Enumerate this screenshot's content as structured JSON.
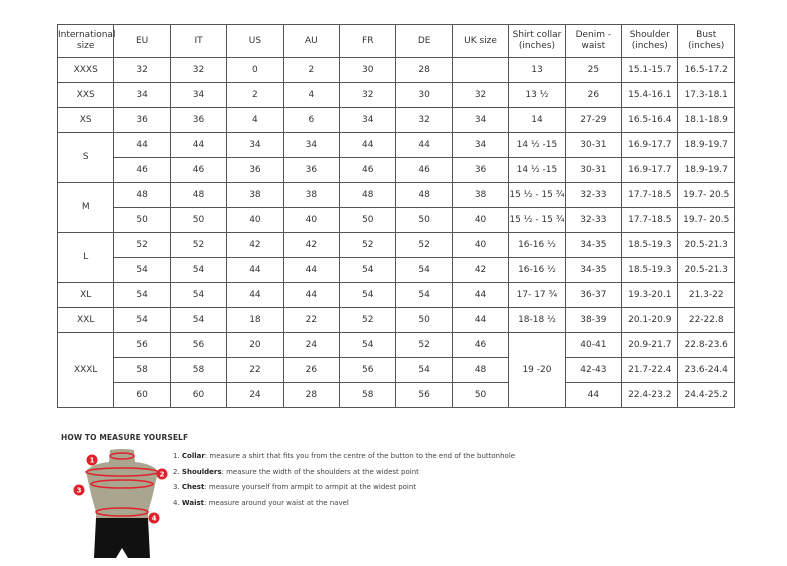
{
  "table": {
    "headers": [
      "International size",
      "EU",
      "IT",
      "US",
      "AU",
      "FR",
      "DE",
      "UK size",
      "Shirt collar (inches)",
      "Denim - waist",
      "Shoulder (inches)",
      "Bust (inches)"
    ],
    "rows": [
      [
        {
          "text": "XXXS"
        },
        "32",
        "32",
        "0",
        "2",
        "30",
        "28",
        "",
        "13",
        "25",
        "15.1-15.7",
        "16.5-17.2"
      ],
      [
        {
          "text": "XXS"
        },
        "34",
        "34",
        "2",
        "4",
        "32",
        "30",
        "32",
        "13 ½",
        "26",
        "15.4-16.1",
        "17.3-18.1"
      ],
      [
        {
          "text": "XS"
        },
        "36",
        "36",
        "4",
        "6",
        "34",
        "32",
        "34",
        "14",
        "27-29",
        "16.5-16.4",
        "18.1-18.9"
      ],
      [
        {
          "text": "S",
          "rowspan": 2
        },
        "44",
        "44",
        "34",
        "34",
        "44",
        "44",
        "34",
        "14 ½ -15",
        "30-31",
        "16.9-17.7",
        "18.9-19.7"
      ],
      [
        "46",
        "46",
        "36",
        "36",
        "46",
        "46",
        "36",
        "14 ½ -15",
        "30-31",
        "16.9-17.7",
        "18.9-19.7"
      ],
      [
        {
          "text": "M",
          "rowspan": 2
        },
        "48",
        "48",
        "38",
        "38",
        "48",
        "48",
        "38",
        "15 ½ - 15 ¾",
        "32-33",
        "17.7-18.5",
        "19.7- 20.5"
      ],
      [
        "50",
        "50",
        "40",
        "40",
        "50",
        "50",
        "40",
        "15 ½ - 15 ¾",
        "32-33",
        "17.7-18.5",
        "19.7- 20.5"
      ],
      [
        {
          "text": "L",
          "rowspan": 2
        },
        "52",
        "52",
        "42",
        "42",
        "52",
        "52",
        "40",
        "16-16 ½",
        "34-35",
        "18.5-19.3",
        "20.5-21.3"
      ],
      [
        "54",
        "54",
        "44",
        "44",
        "54",
        "54",
        "42",
        "16-16 ½",
        "34-35",
        "18.5-19.3",
        "20.5-21.3"
      ],
      [
        {
          "text": "XL"
        },
        "54",
        "54",
        "44",
        "44",
        "54",
        "54",
        "44",
        "17- 17 ¾",
        "36-37",
        "19.3-20.1",
        "21.3-22"
      ],
      [
        {
          "text": "XXL"
        },
        "54",
        "54",
        "18",
        "22",
        "52",
        "50",
        "44",
        "18-18 ½",
        "38-39",
        "20.1-20.9",
        "22-22.8"
      ],
      [
        {
          "text": "XXXL",
          "rowspan": 3
        },
        "56",
        "56",
        "20",
        "24",
        "54",
        "52",
        "46",
        {
          "text": "19 -20",
          "rowspan": 3
        },
        "40-41",
        "20.9-21.7",
        "22.8-23.6"
      ],
      [
        "58",
        "58",
        "22",
        "26",
        "56",
        "54",
        "48",
        "42-43",
        "21.7-22.4",
        "23.6-24.4"
      ],
      [
        "60",
        "60",
        "24",
        "28",
        "58",
        "56",
        "50",
        "44",
        "22.4-23.2",
        "24.4-25.2"
      ]
    ]
  },
  "guide": {
    "title": "HOW TO MEASURE YOURSELF",
    "steps": [
      {
        "num": "1.",
        "label": "Collar",
        "text": ": measure a shirt that fits you from the centre of the button to the end of the buttonhole"
      },
      {
        "num": "2.",
        "label": "Shoulders",
        "text": ": measure the width of the shoulders at the widest point"
      },
      {
        "num": "3.",
        "label": "Chest",
        "text": ": measure yourself from armpit to armpit at the widest point"
      },
      {
        "num": "4.",
        "label": "Waist",
        "text": ": measure around your waist at the navel"
      }
    ],
    "markers": [
      "1",
      "2",
      "3",
      "4"
    ],
    "colors": {
      "marker": "#e0212b",
      "torso": "#a9a58f",
      "shorts": "#111111"
    }
  }
}
